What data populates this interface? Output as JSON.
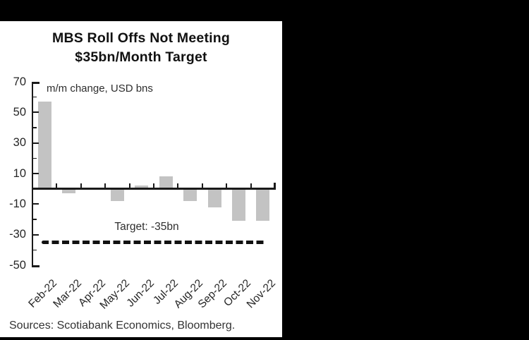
{
  "frame": {
    "background": "#000000",
    "panel_background": "#ffffff"
  },
  "title": {
    "line1": "MBS Roll Offs Not Meeting",
    "line2": "$35bn/Month Target"
  },
  "annotation": "m/m change, USD bns",
  "sources": "Sources: Scotiabank Economics, Bloomberg.",
  "chart_data": {
    "type": "bar",
    "title": "MBS Roll Offs Not Meeting $35bn/Month Target",
    "subtitle_annotation": "m/m change, USD bns",
    "categories": [
      "Feb-22",
      "Mar-22",
      "Apr-22",
      "May-22",
      "Jun-22",
      "Jul-22",
      "Aug-22",
      "Sep-22",
      "Oct-22",
      "Nov-22"
    ],
    "values": [
      57,
      -3,
      0,
      -8,
      2,
      8,
      -8,
      -12,
      -21,
      -21
    ],
    "xlabel": "",
    "ylabel": "",
    "ylim": [
      -50,
      70
    ],
    "yticks_major": [
      70,
      50,
      30,
      10,
      -10,
      -30,
      -50
    ],
    "yticks_minor": [
      60,
      40,
      20,
      -20,
      -40
    ],
    "grid": false,
    "legend": false,
    "target_line": {
      "value": -35,
      "label": "Target: -35bn",
      "style": "dashed"
    },
    "colors": {
      "bar": "#c3c3c3",
      "axis": "#1a1a1a",
      "target_line": "#111111",
      "text": "#262626"
    }
  }
}
